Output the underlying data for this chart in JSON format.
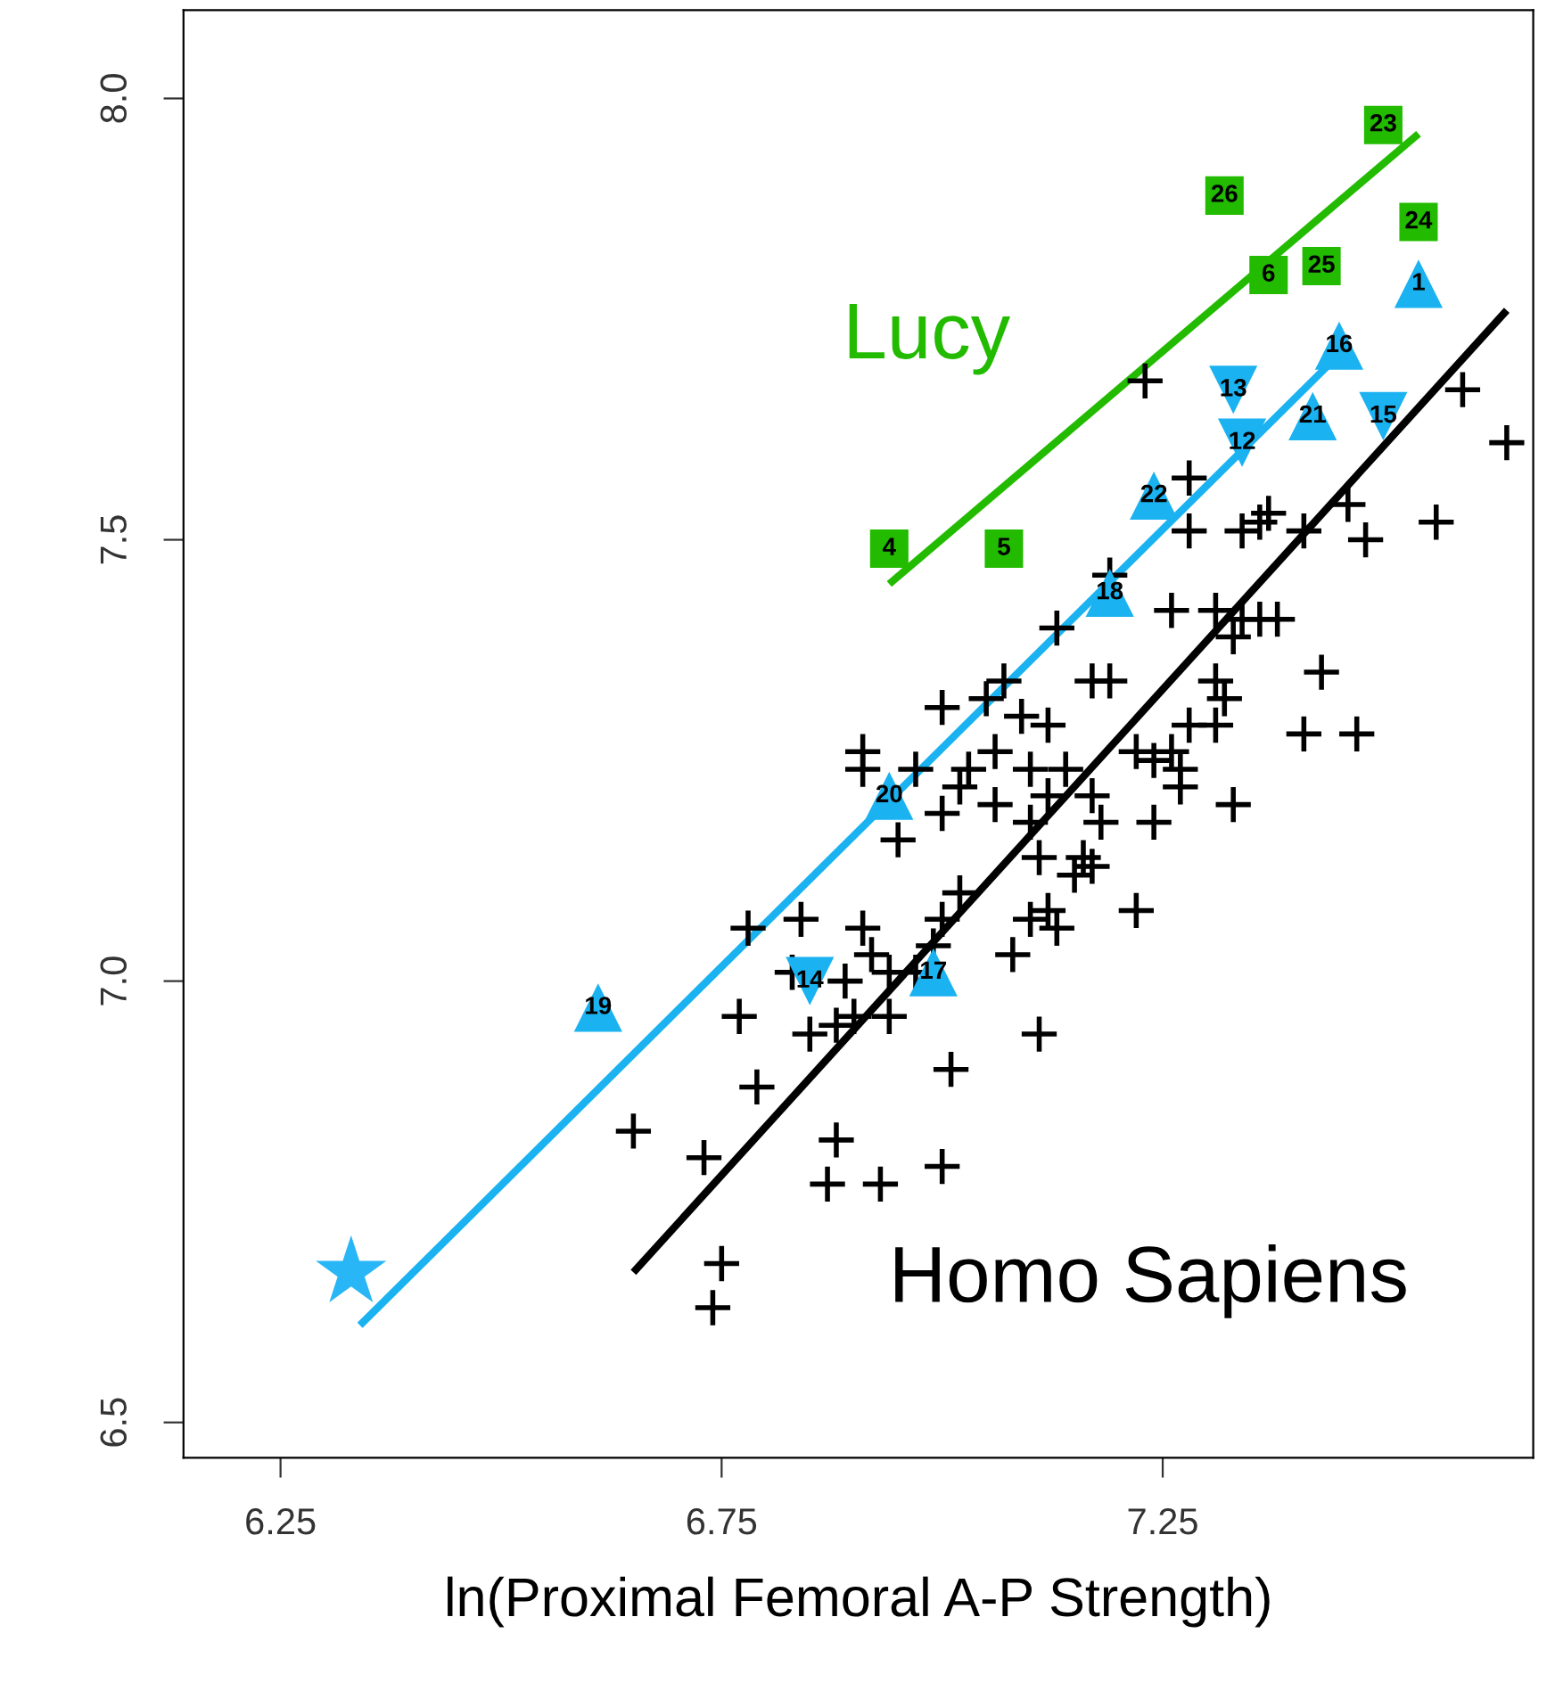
{
  "chart_data": {
    "type": "scatter",
    "xlabel": "ln(Proximal Femoral A-P Strength)",
    "xlim": [
      6.14,
      7.67
    ],
    "ylim": [
      6.46,
      8.1
    ],
    "xticks": [
      6.25,
      6.75,
      7.25
    ],
    "yticks": [
      {
        "value": 6.5,
        "label": "6.5"
      },
      {
        "value": 7.0,
        "label": "7.0"
      },
      {
        "value": 7.5,
        "label": "7.5"
      },
      {
        "value": 8.0,
        "label": "8.0"
      }
    ],
    "grid": false,
    "legend": false,
    "series": [
      {
        "marker": "cross",
        "color": "#000000",
        "x": [
          7.23,
          7.59,
          7.64,
          7.56,
          7.46,
          7.48,
          7.41,
          7.36,
          7.28,
          7.28,
          7.34,
          7.37,
          7.19,
          7.31,
          7.34,
          7.36,
          7.38,
          7.26,
          7.43,
          7.47,
          7.41,
          7.31,
          7.33,
          7.32,
          7.33,
          7.31,
          7.28,
          7.26,
          7.24,
          7.27,
          7.27,
          7.24,
          7.22,
          7.19,
          7.17,
          7.13,
          7.07,
          7.05,
          7.0,
          7.06,
          7.09,
          7.12,
          7.1,
          7.14,
          7.03,
          7.02,
          6.97,
          6.91,
          6.91,
          7.0,
          6.95,
          7.06,
          7.1,
          7.12,
          7.17,
          7.18,
          7.16,
          7.17,
          7.15,
          7.22,
          7.11,
          7.12,
          7.1,
          7.13,
          7.08,
          7.02,
          7.0,
          6.91,
          6.84,
          6.78,
          6.83,
          6.89,
          6.92,
          6.94,
          6.97,
          6.99,
          6.88,
          6.9,
          6.85,
          6.94,
          6.77,
          6.79,
          7.01,
          7.11,
          6.88,
          6.87,
          6.93,
          7.0,
          6.73,
          6.65,
          6.75,
          6.74
        ],
        "values": [
          7.68,
          7.67,
          7.61,
          7.52,
          7.54,
          7.5,
          7.51,
          7.52,
          7.57,
          7.51,
          7.51,
          7.53,
          7.46,
          7.42,
          7.41,
          7.41,
          7.41,
          7.42,
          7.35,
          7.28,
          7.28,
          7.34,
          7.39,
          7.32,
          7.2,
          7.29,
          7.29,
          7.26,
          7.25,
          7.24,
          7.22,
          7.18,
          7.26,
          7.34,
          7.34,
          7.4,
          7.34,
          7.32,
          7.31,
          7.26,
          7.3,
          7.29,
          7.24,
          7.24,
          7.24,
          7.22,
          7.24,
          7.26,
          7.24,
          7.19,
          7.16,
          7.2,
          7.18,
          7.21,
          7.21,
          7.18,
          7.14,
          7.13,
          7.12,
          7.08,
          7.14,
          7.08,
          7.07,
          7.06,
          7.03,
          7.1,
          7.07,
          7.06,
          7.07,
          7.06,
          7.01,
          7.0,
          7.03,
          7.01,
          7.01,
          7.04,
          6.95,
          6.96,
          6.94,
          6.96,
          6.96,
          6.88,
          6.9,
          6.94,
          6.82,
          6.77,
          6.77,
          6.79,
          6.8,
          6.83,
          6.68,
          6.63
        ]
      },
      {
        "marker": "triangle",
        "color": "#1ab2f0",
        "x": [
          7.54,
          7.45,
          7.42,
          7.24,
          7.19,
          6.94,
          6.99,
          6.61
        ],
        "values": [
          7.79,
          7.72,
          7.64,
          7.55,
          7.44,
          7.21,
          7.01,
          6.97
        ]
      },
      {
        "marker": "triangle_down",
        "color": "#1ab2f0",
        "x": [
          7.33,
          7.34,
          7.5,
          6.85
        ],
        "values": [
          7.67,
          7.61,
          7.64,
          7.0
        ]
      },
      {
        "marker": "square",
        "color": "#22bb00",
        "x": [
          6.94,
          7.07,
          7.37,
          7.32,
          7.43,
          7.5,
          7.54
        ],
        "values": [
          7.49,
          7.49,
          7.8,
          7.89,
          7.81,
          7.97,
          7.86
        ]
      },
      {
        "marker": "star",
        "color": "#29b6f6",
        "x": [
          6.33
        ],
        "values": [
          6.67
        ]
      },
      {
        "type": "line",
        "name": "Lucy",
        "color": "#22bb00",
        "x": [
          6.94,
          7.54
        ],
        "values": [
          7.45,
          7.96
        ]
      },
      {
        "type": "line",
        "color": "#1ab2f0",
        "x": [
          6.34,
          7.45
        ],
        "values": [
          6.61,
          7.71
        ]
      },
      {
        "type": "line",
        "name": "Homo Sapiens",
        "color": "#000000",
        "x": [
          6.65,
          7.64
        ],
        "values": [
          6.67,
          7.76
        ]
      }
    ],
    "annotations": [
      {
        "text": "1",
        "x": 7.54,
        "y": 7.79
      },
      {
        "text": "16",
        "x": 7.45,
        "y": 7.72
      },
      {
        "text": "21",
        "x": 7.42,
        "y": 7.64
      },
      {
        "text": "22",
        "x": 7.24,
        "y": 7.55
      },
      {
        "text": "18",
        "x": 7.19,
        "y": 7.44
      },
      {
        "text": "20",
        "x": 6.94,
        "y": 7.21
      },
      {
        "text": "17",
        "x": 6.99,
        "y": 7.01
      },
      {
        "text": "19",
        "x": 6.61,
        "y": 6.97
      },
      {
        "text": "13",
        "x": 7.33,
        "y": 7.67
      },
      {
        "text": "12",
        "x": 7.34,
        "y": 7.61
      },
      {
        "text": "15",
        "x": 7.5,
        "y": 7.64
      },
      {
        "text": "14",
        "x": 6.85,
        "y": 7.0
      },
      {
        "text": "4",
        "x": 6.94,
        "y": 7.49
      },
      {
        "text": "5",
        "x": 7.07,
        "y": 7.49
      },
      {
        "text": "6",
        "x": 7.37,
        "y": 7.8
      },
      {
        "text": "26",
        "x": 7.32,
        "y": 7.89
      },
      {
        "text": "25",
        "x": 7.43,
        "y": 7.81
      },
      {
        "text": "23",
        "x": 7.5,
        "y": 7.97
      },
      {
        "text": "24",
        "x": 7.54,
        "y": 7.86
      }
    ]
  }
}
